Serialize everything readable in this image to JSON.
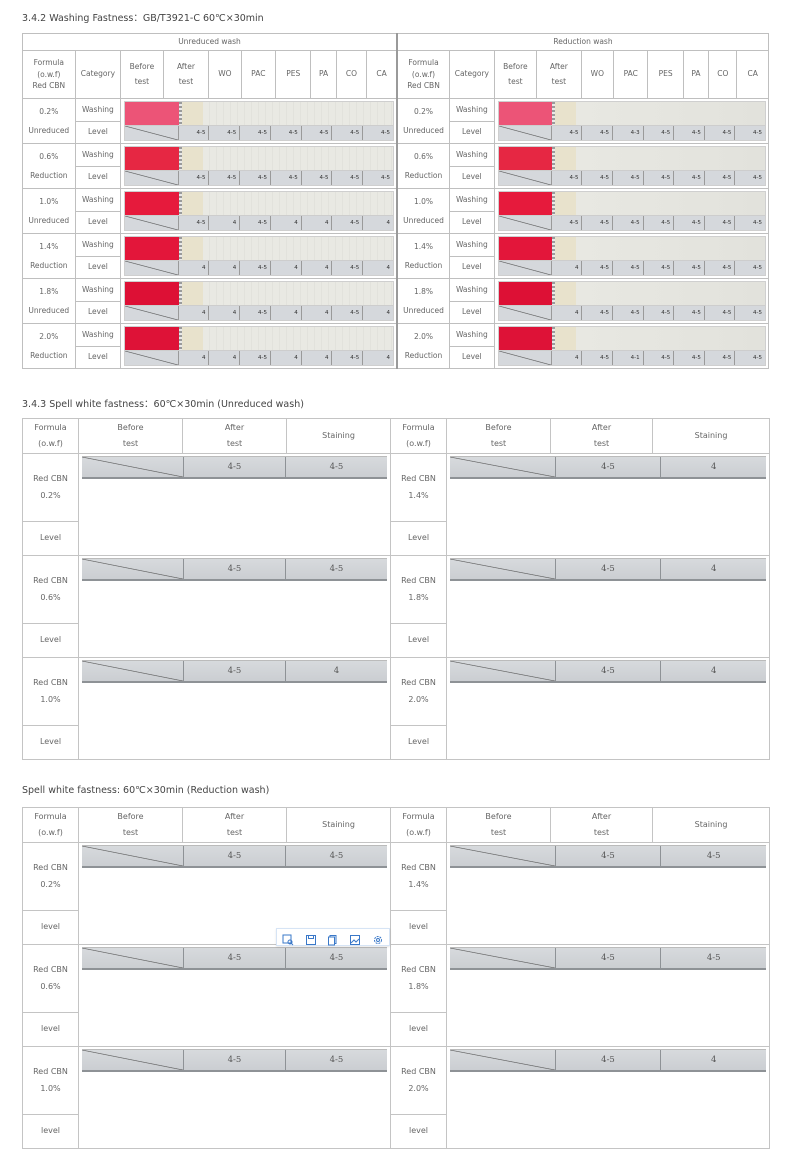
{
  "section1": {
    "title": "3.4.2 Washing Fastness：GB/T3921-C 60℃×30min",
    "groups": [
      "Unreduced wash",
      "Reduction wash"
    ],
    "headers": {
      "formula": [
        "Formula",
        "(o.w.f)",
        "Red CBN"
      ],
      "category": "Category",
      "before": [
        "Before",
        "test"
      ],
      "after": [
        "After",
        "test"
      ],
      "fibers": [
        "WO",
        "PAC",
        "PES",
        "PA",
        "CO",
        "CA"
      ]
    },
    "row_labels": {
      "washing": "Washing",
      "level": "Level"
    },
    "colors": {
      "0.2": "#ec5477",
      "0.6": "#e62743",
      "1.0": "#e61a3c",
      "1.4": "#e3163a",
      "1.8": "#dd1035",
      "2.0": "#de1237"
    },
    "rows": [
      {
        "conc": "0.2%",
        "type": "Unreduced",
        "color_key": "0.2",
        "unreduced": [
          "4-5",
          "4-5",
          "4-5",
          "4-5",
          "4-5",
          "4-5",
          "4-5"
        ],
        "reduction": [
          "4-5",
          "4-5",
          "4-3",
          "4-5",
          "4-5",
          "4-5",
          "4-5"
        ]
      },
      {
        "conc": "0.6%",
        "type": "Reduction",
        "color_key": "0.6",
        "unreduced": [
          "4-5",
          "4-5",
          "4-5",
          "4-5",
          "4-5",
          "4-5",
          "4-5"
        ],
        "reduction": [
          "4-5",
          "4-5",
          "4-5",
          "4-5",
          "4-5",
          "4-5",
          "4-5"
        ]
      },
      {
        "conc": "1.0%",
        "type": "Unreduced",
        "color_key": "1.0",
        "unreduced": [
          "4-5",
          "4",
          "4-5",
          "4",
          "4",
          "4-5",
          "4"
        ],
        "reduction": [
          "4-5",
          "4-5",
          "4-5",
          "4-5",
          "4-5",
          "4-5",
          "4-5"
        ]
      },
      {
        "conc": "1.4%",
        "type": "Reduction",
        "color_key": "1.4",
        "unreduced": [
          "4",
          "4",
          "4-5",
          "4",
          "4",
          "4-5",
          "4"
        ],
        "reduction": [
          "4",
          "4-5",
          "4-5",
          "4-5",
          "4-5",
          "4-5",
          "4-5"
        ]
      },
      {
        "conc": "1.8%",
        "type": "Unreduced",
        "color_key": "1.8",
        "unreduced": [
          "4",
          "4",
          "4-5",
          "4",
          "4",
          "4-5",
          "4"
        ],
        "reduction": [
          "4",
          "4-5",
          "4-5",
          "4-5",
          "4-5",
          "4-5",
          "4-5"
        ]
      },
      {
        "conc": "2.0%",
        "type": "Reduction",
        "color_key": "2.0",
        "unreduced": [
          "4",
          "4",
          "4-5",
          "4",
          "4",
          "4-5",
          "4"
        ],
        "reduction": [
          "4",
          "4-5",
          "4-1",
          "4-5",
          "4-5",
          "4-5",
          "4-5"
        ]
      }
    ]
  },
  "section2": {
    "title": "3.4.3 Spell white fastness：60℃×30min (Unreduced wash)",
    "level_label": "Level",
    "rows": [
      {
        "left": {
          "name": "Red CBN",
          "conc": "0.2%",
          "color_key": "0.2",
          "after": "4-5",
          "staining": "4-5"
        },
        "right": {
          "name": "Red CBN",
          "conc": "1.4%",
          "color_key": "1.4",
          "after": "4-5",
          "staining": "4"
        }
      },
      {
        "left": {
          "name": "Red CBN",
          "conc": "0.6%",
          "color_key": "0.6",
          "after": "4-5",
          "staining": "4-5"
        },
        "right": {
          "name": "Red CBN",
          "conc": "1.8%",
          "color_key": "1.8",
          "after": "4-5",
          "staining": "4"
        }
      },
      {
        "left": {
          "name": "Red CBN",
          "conc": "1.0%",
          "color_key": "1.0",
          "after": "4-5",
          "staining": "4"
        },
        "right": {
          "name": "Red CBN",
          "conc": "2.0%",
          "color_key": "2.0",
          "after": "4-5",
          "staining": "4"
        }
      }
    ]
  },
  "section3": {
    "title": "Spell white fastness: 60℃×30min (Reduction wash)",
    "level_label": "level",
    "rows": [
      {
        "left": {
          "name": "Red CBN",
          "conc": "0.2%",
          "color_key": "0.2",
          "after": "4-5",
          "staining": "4-5"
        },
        "right": {
          "name": "Red CBN",
          "conc": "1.4%",
          "color_key": "1.4",
          "after": "4-5",
          "staining": "4-5"
        }
      },
      {
        "left": {
          "name": "Red CBN",
          "conc": "0.6%",
          "color_key": "0.6",
          "after": "4-5",
          "staining": "4-5"
        },
        "right": {
          "name": "Red CBN",
          "conc": "1.8%",
          "color_key": "1.8",
          "after": "4-5",
          "staining": "4-5"
        }
      },
      {
        "left": {
          "name": "Red CBN",
          "conc": "1.0%",
          "color_key": "1.0",
          "after": "4-5",
          "staining": "4-5"
        },
        "right": {
          "name": "Red CBN",
          "conc": "2.0%",
          "color_key": "2.0",
          "after": "4-5",
          "staining": "4"
        }
      }
    ]
  },
  "spell_headers": {
    "formula": [
      "Formula",
      "(o.w.f)"
    ],
    "before": [
      "Before",
      "test"
    ],
    "after": [
      "After",
      "test"
    ],
    "staining": "Staining"
  },
  "image_toolbar": [
    "image-search-icon",
    "save-icon",
    "copy-icon",
    "image-icon",
    "gear-icon"
  ]
}
